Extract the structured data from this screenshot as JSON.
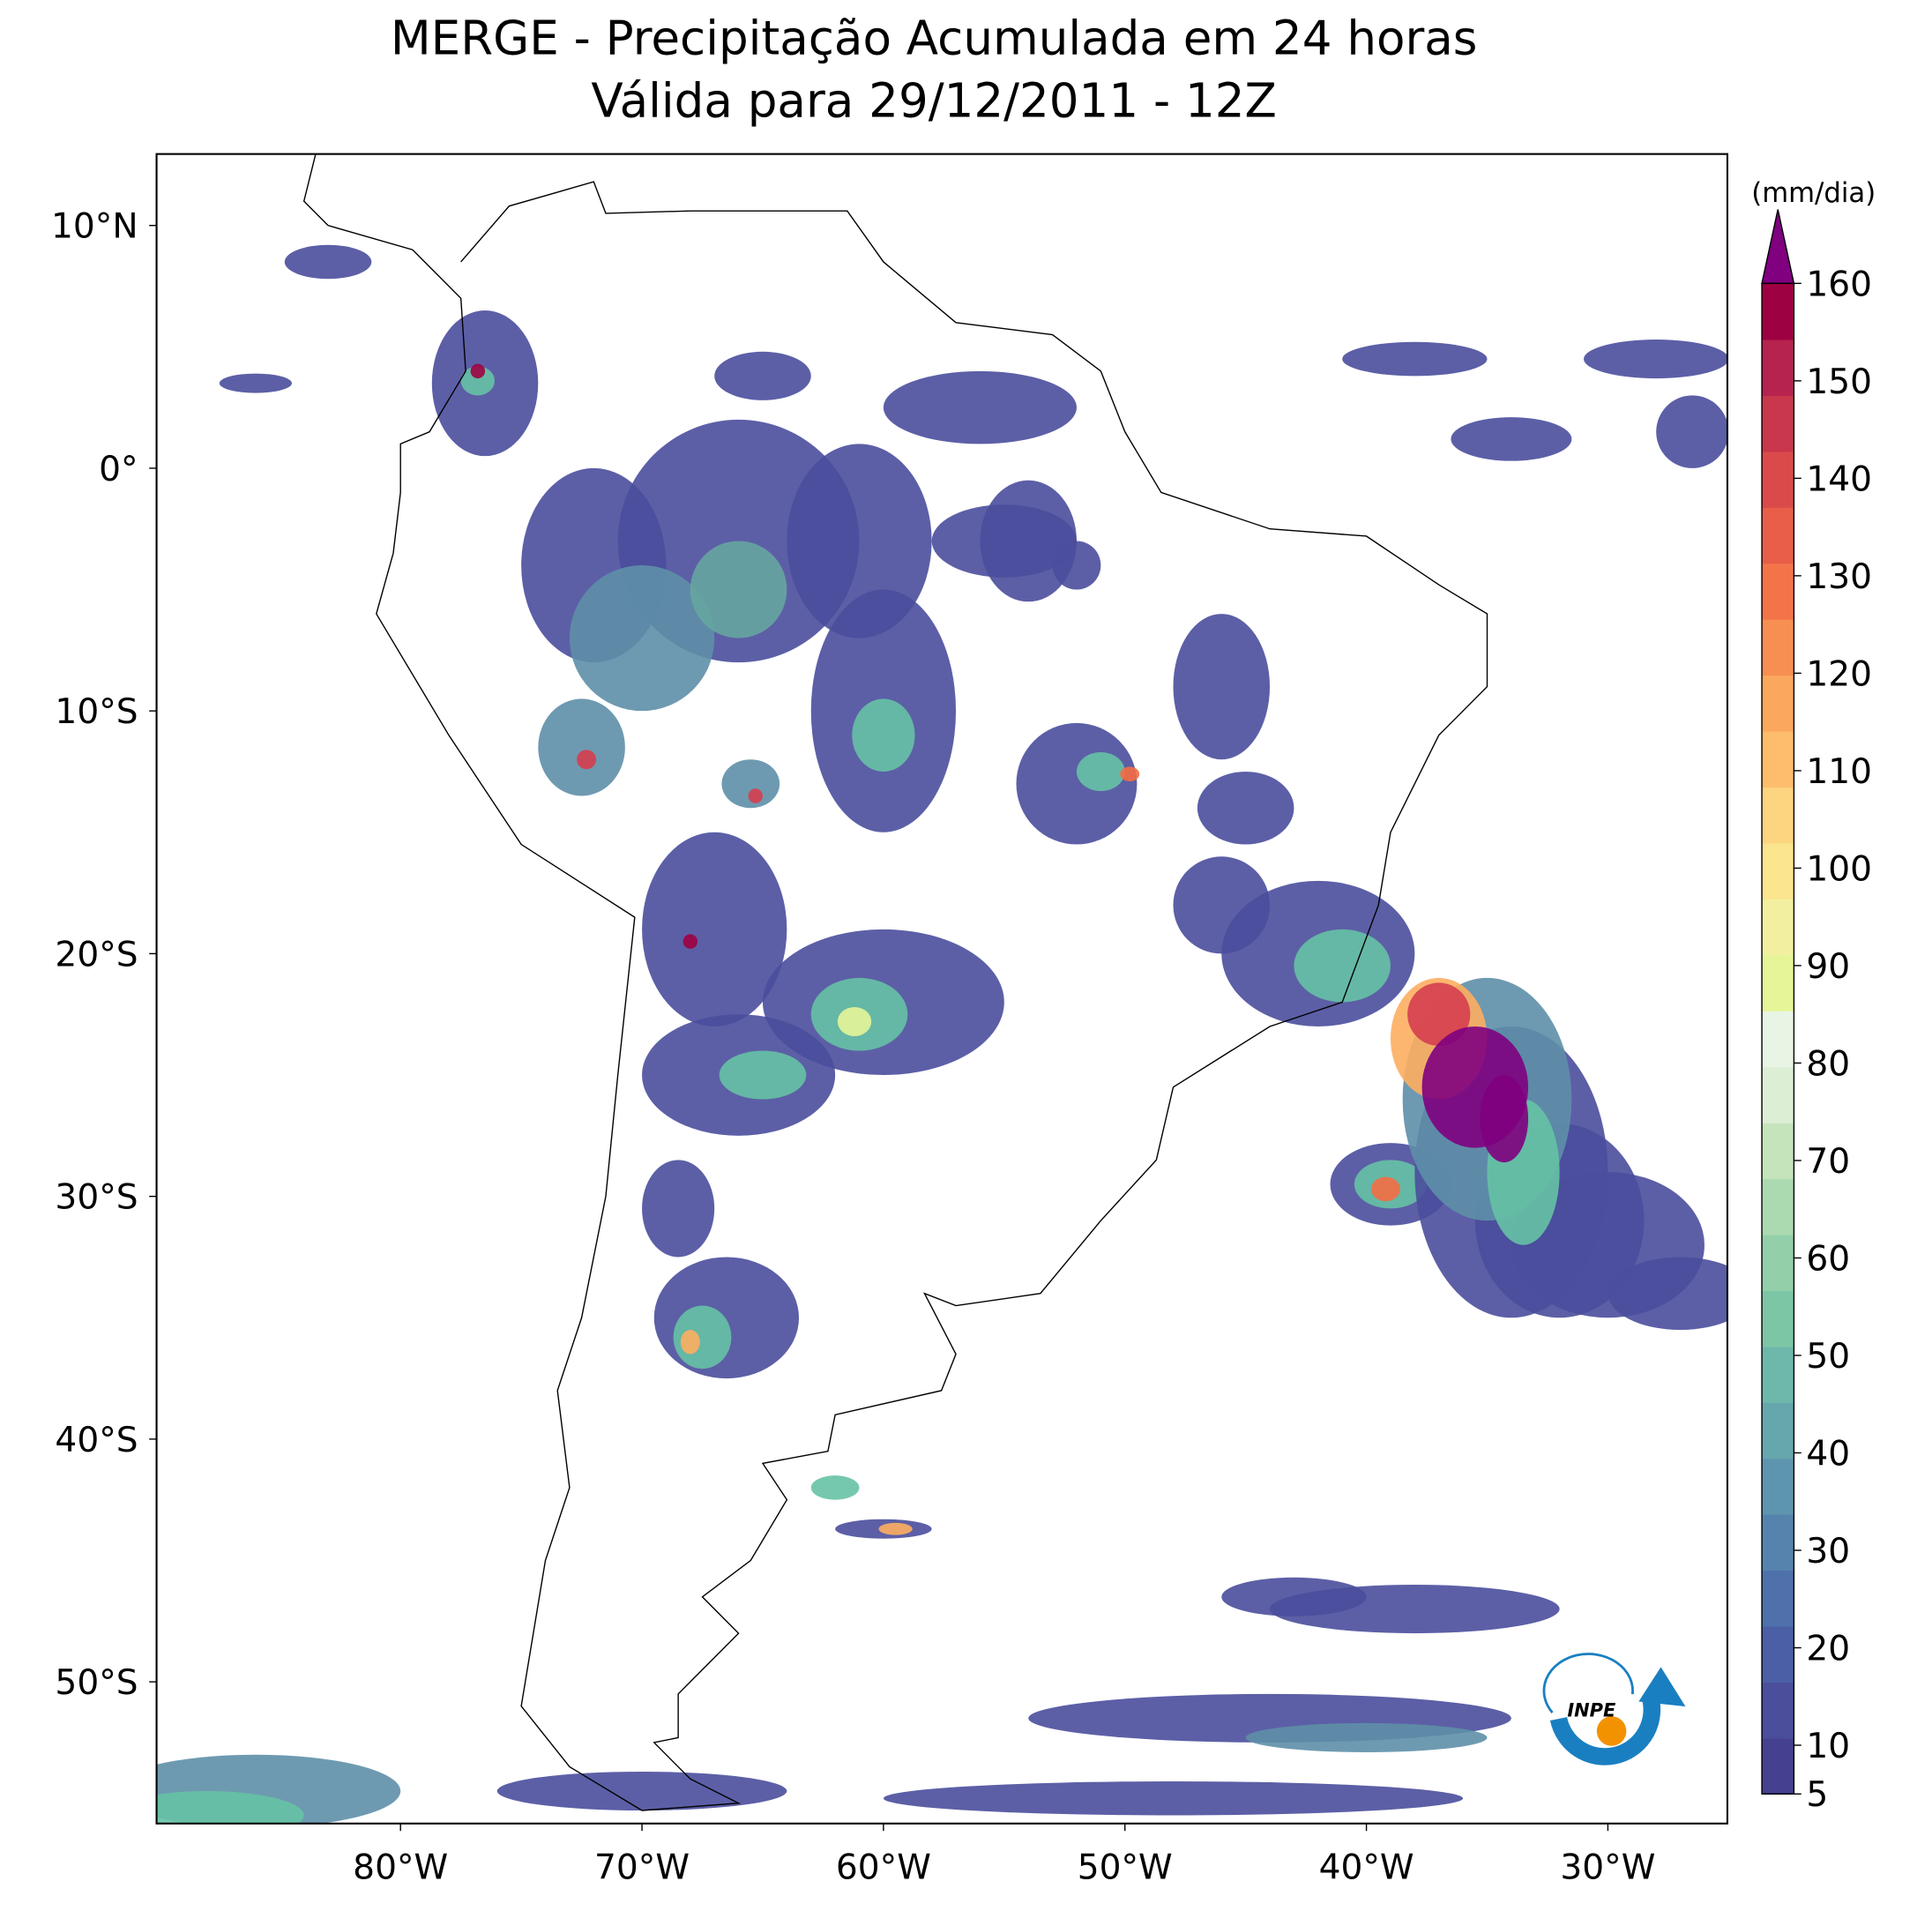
{
  "title": "MERGE - Precipitação Acumulada em 24 horas",
  "subtitle": "Válida para 29/12/2011 - 12Z",
  "map": {
    "xticks": [
      {
        "value": -80,
        "label": "80°W"
      },
      {
        "value": -70,
        "label": "70°W"
      },
      {
        "value": -60,
        "label": "60°W"
      },
      {
        "value": -50,
        "label": "50°W"
      },
      {
        "value": -40,
        "label": "40°W"
      },
      {
        "value": -30,
        "label": "30°W"
      }
    ],
    "yticks": [
      {
        "value": 10,
        "label": "10°N"
      },
      {
        "value": 0,
        "label": "0°"
      },
      {
        "value": -10,
        "label": "10°S"
      },
      {
        "value": -20,
        "label": "20°S"
      },
      {
        "value": -30,
        "label": "30°S"
      },
      {
        "value": -40,
        "label": "40°S"
      },
      {
        "value": -50,
        "label": "50°S"
      }
    ]
  },
  "colorbar": {
    "label": "(mm/dia)",
    "ticks": [
      5,
      10,
      20,
      30,
      40,
      50,
      60,
      70,
      80,
      90,
      100,
      110,
      120,
      130,
      140,
      150,
      160
    ]
  },
  "logo": "INPE"
}
